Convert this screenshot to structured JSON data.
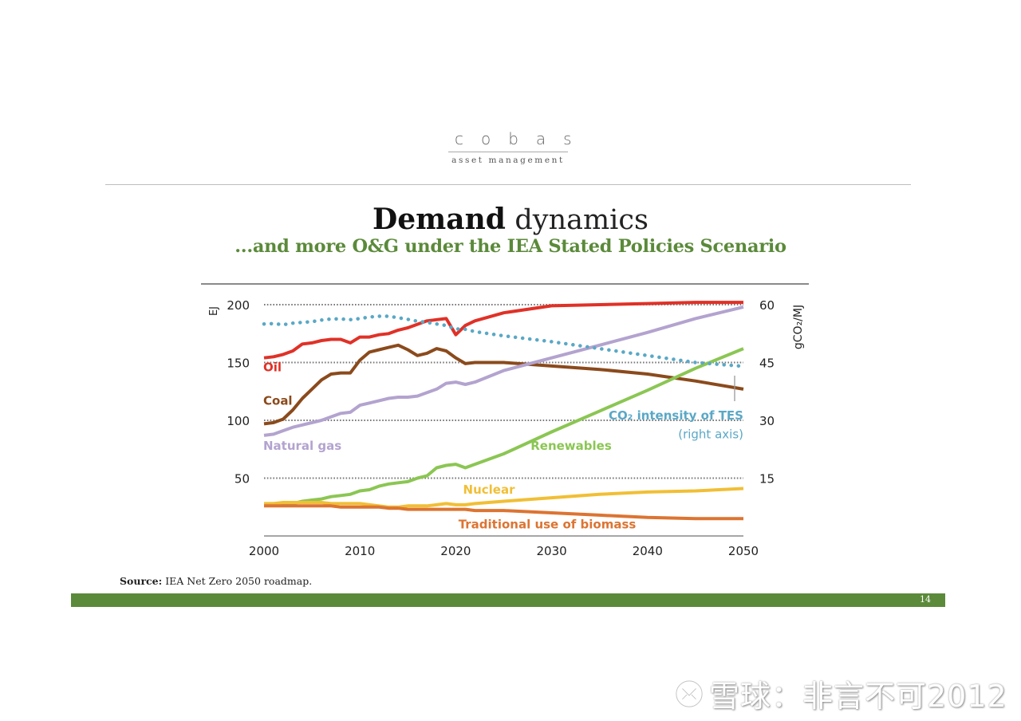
{
  "logo": {
    "wordmark": "cobas",
    "tagline": "asset management"
  },
  "header": {
    "title_bold": "Demand",
    "title_light": "dynamics",
    "subtitle": "...and more O&G under the IEA Stated Policies Scenario"
  },
  "footer": {
    "source_label": "Source:",
    "source_text": "IEA Net Zero 2050 roadmap.",
    "page_number": "14",
    "brand_color": "#5b8a3a"
  },
  "watermark": {
    "text": "雪球：非言不可2012",
    "icon": "snowball-logo-icon"
  },
  "chart_data": {
    "type": "line",
    "title": "",
    "xlabel": "",
    "ylabel": "EJ",
    "ylabel_right": "gCO₂/MJ",
    "xlim": [
      2000,
      2050
    ],
    "ylim": [
      0,
      200
    ],
    "ylim_right": [
      0,
      60
    ],
    "x_ticks": [
      "2000",
      "2010",
      "2020",
      "2030",
      "2040",
      "2050"
    ],
    "y_ticks": [
      "50",
      "100",
      "150",
      "200"
    ],
    "y_ticks_right": [
      "15",
      "30",
      "45",
      "60"
    ],
    "grid": "horizontal-dotted",
    "x": [
      2000,
      2001,
      2002,
      2003,
      2004,
      2005,
      2006,
      2007,
      2008,
      2009,
      2010,
      2011,
      2012,
      2013,
      2014,
      2015,
      2016,
      2017,
      2018,
      2019,
      2020,
      2021,
      2022,
      2025,
      2030,
      2035,
      2040,
      2045,
      2050
    ],
    "series": [
      {
        "name": "Oil",
        "color": "#e03127",
        "axis": "left",
        "style": "solid",
        "values": [
          154,
          155,
          157,
          160,
          166,
          167,
          169,
          170,
          170,
          167,
          172,
          172,
          174,
          175,
          178,
          180,
          183,
          186,
          187,
          188,
          174,
          182,
          186,
          193,
          199,
          200,
          201,
          202,
          202
        ]
      },
      {
        "name": "Coal",
        "color": "#8b4a1c",
        "axis": "left",
        "style": "solid",
        "values": [
          97,
          98,
          101,
          109,
          119,
          127,
          135,
          140,
          141,
          141,
          152,
          159,
          161,
          163,
          165,
          161,
          156,
          158,
          162,
          160,
          154,
          149,
          150,
          150,
          147,
          144,
          140,
          134,
          127
        ]
      },
      {
        "name": "Natural gas",
        "color": "#b3a3cf",
        "axis": "left",
        "style": "solid",
        "values": [
          87,
          88,
          91,
          94,
          96,
          98,
          100,
          103,
          106,
          107,
          113,
          115,
          117,
          119,
          120,
          120,
          121,
          124,
          127,
          132,
          133,
          131,
          133,
          143,
          154,
          165,
          176,
          188,
          198
        ]
      },
      {
        "name": "Renewables",
        "color": "#8bc653",
        "axis": "left",
        "style": "solid",
        "values": [
          27,
          27,
          28,
          28,
          30,
          31,
          32,
          34,
          35,
          36,
          39,
          40,
          43,
          45,
          46,
          47,
          50,
          52,
          59,
          61,
          62,
          59,
          62,
          71,
          90,
          108,
          126,
          145,
          162
        ]
      },
      {
        "name": "Nuclear",
        "color": "#f1bf35",
        "axis": "left",
        "style": "solid",
        "values": [
          28,
          28,
          29,
          29,
          29,
          29,
          29,
          28,
          28,
          28,
          28,
          27,
          26,
          25,
          25,
          26,
          26,
          26,
          27,
          28,
          27,
          27,
          28,
          30,
          33,
          36,
          38,
          39,
          41
        ]
      },
      {
        "name": "Traditional use of biomass",
        "color": "#dc7432",
        "axis": "left",
        "style": "solid",
        "values": [
          26,
          26,
          26,
          26,
          26,
          26,
          26,
          26,
          25,
          25,
          25,
          25,
          25,
          24,
          24,
          23,
          23,
          23,
          23,
          23,
          23,
          23,
          22,
          22,
          20,
          18,
          16,
          15,
          15
        ]
      },
      {
        "name": "CO₂ intensity of TES (right axis)",
        "color": "#5aa8c6",
        "axis": "right",
        "style": "dotted",
        "values": [
          55.0,
          55.1,
          54.8,
          55.2,
          55.4,
          55.6,
          56.0,
          56.3,
          56.3,
          56.1,
          56.4,
          56.8,
          57.0,
          57.0,
          56.6,
          56.2,
          55.7,
          55.4,
          55.0,
          54.6,
          53.7,
          53.6,
          53.0,
          51.9,
          50.4,
          48.6,
          46.8,
          45.0,
          44.0
        ]
      }
    ],
    "annotations": [
      {
        "text": "Oil",
        "color": "#e03127",
        "at": [
          2000,
          146
        ]
      },
      {
        "text": "Coal",
        "color": "#8b4a1c",
        "at": [
          2000,
          117
        ]
      },
      {
        "text": "Natural gas",
        "color": "#b3a3cf",
        "at": [
          2000,
          78
        ]
      },
      {
        "text": "Renewables",
        "color": "#8bc653",
        "at": [
          2028,
          78
        ]
      },
      {
        "text": "Nuclear",
        "color": "#f1bf35",
        "at": [
          2021,
          40
        ]
      },
      {
        "text": "Traditional use of biomass",
        "color": "#dc7432",
        "at": [
          2021,
          10
        ]
      },
      {
        "text": "CO₂ intensity of TES",
        "color": "#5aa8c6",
        "at": [
          2050,
          104
        ]
      },
      {
        "text": "(right axis)",
        "color": "#5aa8c6",
        "at": [
          2050,
          88
        ]
      }
    ],
    "legend": "inline-labels"
  }
}
